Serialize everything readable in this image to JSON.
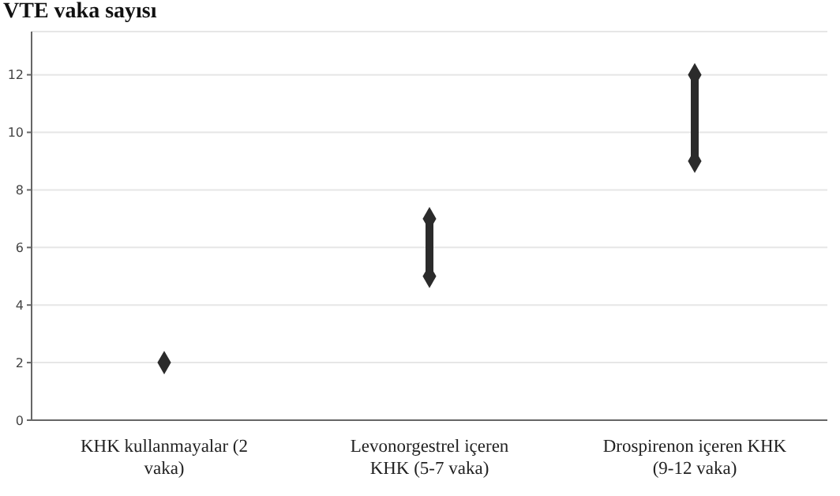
{
  "chart_data": {
    "type": "line",
    "title": "VTE vaka sayısı",
    "categories": [
      "KHK kullanmayalar (2 vaka)",
      "Levonorgestrel içeren KHK (5-7 vaka)",
      "Drospirenon içeren KHK (9-12 vaka)"
    ],
    "series": [
      {
        "x": [
          "KHK kullanmayalar (2 vaka)"
        ],
        "values": [
          2
        ],
        "color": "#2b2b2b"
      },
      {
        "x": [
          "Levonorgestrel içeren KHK (5-7 vaka)",
          "Levonorgestrel içeren KHK (5-7 vaka)"
        ],
        "values": [
          5,
          7
        ],
        "color": "#2b2b2b"
      },
      {
        "x": [
          "Drospirenon içeren KHK (9-12 vaka)",
          "Drospirenon içeren KHK (9-12 vaka)"
        ],
        "values": [
          9,
          12
        ],
        "color": "#2b2b2b"
      }
    ],
    "marker": "diamond",
    "line_style": "solid",
    "ylim": [
      0,
      13.5
    ],
    "yticks": [
      0,
      2,
      4,
      6,
      8,
      10,
      12
    ],
    "grid": "y"
  }
}
